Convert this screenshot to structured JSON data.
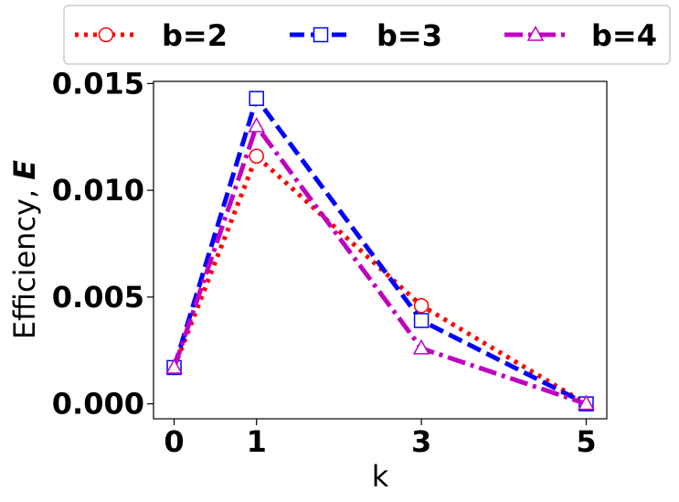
{
  "chart_data": {
    "type": "line",
    "title": "",
    "xlabel": "k",
    "ylabel_prefix": "Efficiency, ",
    "ylabel_symbol": "E",
    "x": [
      0,
      1,
      3,
      5
    ],
    "xticks": [
      "0",
      "1",
      "3",
      "5"
    ],
    "xlim": [
      -0.25,
      5.25
    ],
    "ylim": [
      -0.0007,
      0.0151
    ],
    "yticks": [
      "0.000",
      "0.005",
      "0.010",
      "0.015"
    ],
    "ytick_values": [
      0,
      0.005,
      0.01,
      0.015
    ],
    "grid": false,
    "legend_position": "top, above plot",
    "series": [
      {
        "name": "b=2",
        "color": "#ff0000",
        "dash": "dotted",
        "marker": "circle",
        "values": [
          0.0017,
          0.0116,
          0.0046,
          0.0
        ]
      },
      {
        "name": "b=3",
        "color": "#0000ff",
        "dash": "dashed",
        "marker": "square",
        "values": [
          0.0017,
          0.0143,
          0.0039,
          0.0
        ]
      },
      {
        "name": "b=4",
        "color": "#bf00bf",
        "dash": "dashdot",
        "marker": "triangle",
        "values": [
          0.0017,
          0.013,
          0.0026,
          0.0
        ]
      }
    ]
  }
}
